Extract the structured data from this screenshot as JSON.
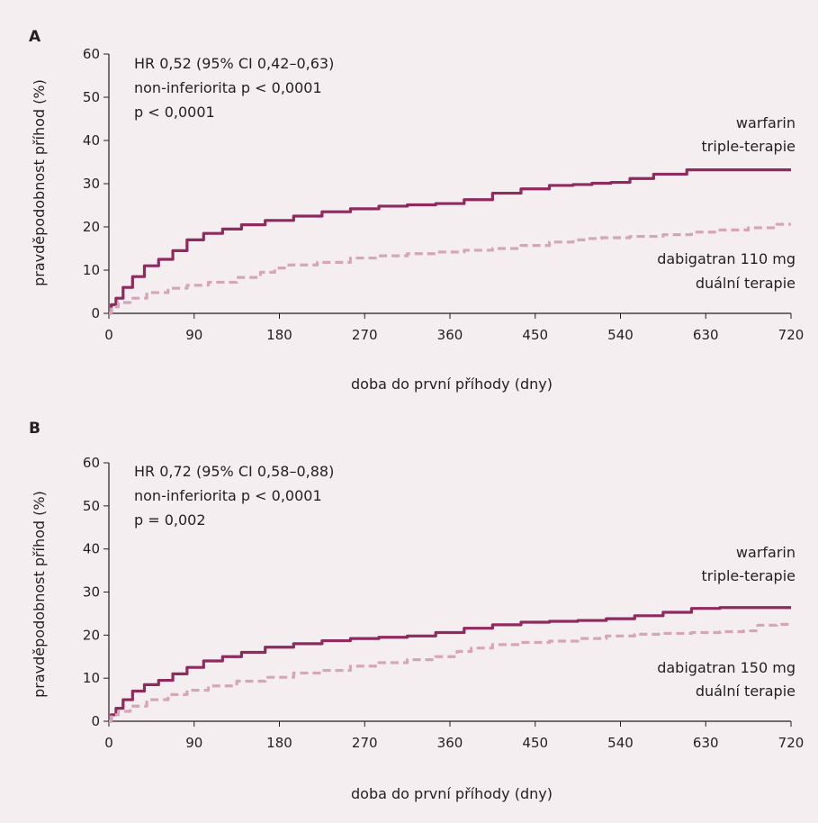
{
  "colors": {
    "background": "#f4eef0",
    "warfarin": "#8e2a5d",
    "dabigatran": "#d5a5b9",
    "text": "#231f20"
  },
  "chart_data": [
    {
      "id": "A",
      "type": "line",
      "panel_label": "A",
      "ylabel": "pravděpodobnost příhod (%)",
      "xlabel": "doba do první příhody (dny)",
      "xlim": [
        0,
        720
      ],
      "ylim": [
        0,
        60
      ],
      "xticks": [
        0,
        90,
        180,
        270,
        360,
        450,
        540,
        630,
        720
      ],
      "yticks": [
        0,
        10,
        20,
        30,
        40,
        50,
        60
      ],
      "stats": [
        "HR 0,52 (95% CI 0,42–0,63)",
        "non-inferiorita p < 0,0001",
        "p < 0,0001"
      ],
      "series": [
        {
          "name": "warfarin triple-terapie",
          "label_lines": [
            "warfarin",
            "triple-terapie"
          ],
          "style": "solid",
          "x": [
            0,
            5,
            10,
            20,
            30,
            45,
            60,
            75,
            90,
            110,
            130,
            150,
            180,
            210,
            240,
            270,
            300,
            330,
            360,
            390,
            420,
            450,
            480,
            500,
            520,
            540,
            560,
            590,
            630,
            660,
            690,
            720
          ],
          "y": [
            0,
            2,
            3.5,
            6,
            8.5,
            11,
            12.5,
            14.5,
            17,
            18.5,
            19.5,
            20.5,
            21.5,
            22.5,
            23.5,
            24.2,
            24.8,
            25.1,
            25.4,
            26.3,
            27.8,
            28.8,
            29.6,
            29.8,
            30.1,
            30.3,
            31.2,
            32.2,
            33.2,
            33.2,
            33.2,
            33.2
          ]
        },
        {
          "name": "dabigatran 110 mg duální terapie",
          "label_lines": [
            "dabigatran 110 mg",
            "duální terapie"
          ],
          "style": "dashed",
          "x": [
            0,
            5,
            15,
            30,
            50,
            75,
            90,
            120,
            150,
            170,
            180,
            200,
            240,
            270,
            300,
            330,
            360,
            390,
            420,
            450,
            480,
            500,
            510,
            530,
            570,
            600,
            630,
            660,
            690,
            720
          ],
          "y": [
            0,
            1.5,
            2.5,
            3.5,
            4.8,
            5.8,
            6.5,
            7.2,
            8.3,
            9.5,
            10.5,
            11.2,
            11.8,
            12.8,
            13.3,
            13.8,
            14.2,
            14.6,
            15,
            15.7,
            16.5,
            17,
            17.3,
            17.5,
            17.8,
            18.2,
            18.8,
            19.3,
            19.8,
            20.6
          ]
        }
      ]
    },
    {
      "id": "B",
      "type": "line",
      "panel_label": "B",
      "ylabel": "pravděpodobnost příhod (%)",
      "xlabel": "doba do první příhody (dny)",
      "xlim": [
        0,
        720
      ],
      "ylim": [
        0,
        60
      ],
      "xticks": [
        0,
        90,
        180,
        270,
        360,
        450,
        540,
        630,
        720
      ],
      "yticks": [
        0,
        10,
        20,
        30,
        40,
        50,
        60
      ],
      "stats": [
        "HR 0,72 (95% CI 0,58–0,88)",
        "non-inferiorita p < 0,0001",
        "p = 0,002"
      ],
      "series": [
        {
          "name": "warfarin triple-terapie",
          "label_lines": [
            "warfarin",
            "triple-terapie"
          ],
          "style": "solid",
          "x": [
            0,
            5,
            10,
            20,
            30,
            45,
            60,
            75,
            90,
            110,
            130,
            150,
            180,
            210,
            240,
            270,
            300,
            330,
            360,
            390,
            420,
            450,
            480,
            510,
            540,
            570,
            600,
            630,
            660,
            690,
            720
          ],
          "y": [
            0,
            1.5,
            3,
            5,
            7,
            8.5,
            9.5,
            11,
            12.5,
            14,
            15,
            16,
            17.2,
            18,
            18.7,
            19.2,
            19.5,
            19.8,
            20.6,
            21.6,
            22.4,
            23,
            23.2,
            23.4,
            23.8,
            24.5,
            25.3,
            26.2,
            26.4,
            26.4,
            26.4
          ]
        },
        {
          "name": "dabigatran 150 mg duální terapie",
          "label_lines": [
            "dabigatran 150 mg",
            "duální terapie"
          ],
          "style": "dashed",
          "x": [
            0,
            5,
            15,
            30,
            50,
            75,
            90,
            120,
            150,
            180,
            210,
            240,
            270,
            300,
            330,
            360,
            375,
            390,
            420,
            450,
            480,
            510,
            540,
            570,
            600,
            630,
            660,
            680,
            690,
            720
          ],
          "y": [
            0,
            1.5,
            2.3,
            3.5,
            5,
            6.2,
            7.2,
            8.2,
            9.3,
            10.2,
            11.2,
            11.8,
            12.8,
            13.6,
            14.3,
            15,
            16.2,
            17,
            17.8,
            18.3,
            18.6,
            19.2,
            19.8,
            20.2,
            20.4,
            20.6,
            20.8,
            21,
            22.3,
            22.5
          ]
        }
      ]
    }
  ]
}
